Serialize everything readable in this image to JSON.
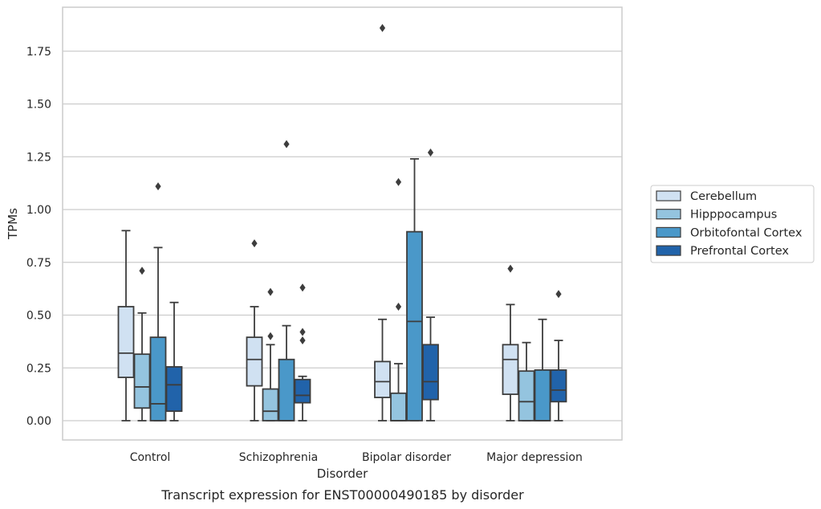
{
  "caption": "Transcript expression for ENST00000490185 by disorder",
  "chart_data": {
    "type": "box",
    "xlabel": "Disorder",
    "ylabel": "TPMs",
    "ylim": [
      -0.09,
      1.97
    ],
    "yticks": [
      "0.00",
      "0.25",
      "0.50",
      "0.75",
      "1.00",
      "1.25",
      "1.50",
      "1.75"
    ],
    "ytick_values": [
      0,
      0.25,
      0.5,
      0.75,
      1.0,
      1.25,
      1.5,
      1.75
    ],
    "grid": "horizontal",
    "legend_position": "right",
    "categories": [
      "Control",
      "Schizophrenia",
      "Bipolar disorder",
      "Major depression"
    ],
    "series": [
      {
        "name": "Cerebellum",
        "color": "#d0e1f2",
        "boxes": [
          {
            "whislo": 0.0,
            "q1": 0.205,
            "med": 0.32,
            "q3": 0.54,
            "whishi": 0.9,
            "fliers": []
          },
          {
            "whislo": 0.0,
            "q1": 0.165,
            "med": 0.29,
            "q3": 0.395,
            "whishi": 0.54,
            "fliers": [
              0.84
            ]
          },
          {
            "whislo": 0.0,
            "q1": 0.11,
            "med": 0.185,
            "q3": 0.28,
            "whishi": 0.48,
            "fliers": [
              1.86
            ]
          },
          {
            "whislo": 0.0,
            "q1": 0.125,
            "med": 0.29,
            "q3": 0.36,
            "whishi": 0.55,
            "fliers": [
              0.72
            ]
          }
        ]
      },
      {
        "name": "Hipppocampus",
        "color": "#94c4df",
        "boxes": [
          {
            "whislo": 0.0,
            "q1": 0.06,
            "med": 0.16,
            "q3": 0.315,
            "whishi": 0.51,
            "fliers": [
              0.71
            ]
          },
          {
            "whislo": 0.0,
            "q1": 0.0,
            "med": 0.045,
            "q3": 0.15,
            "whishi": 0.36,
            "fliers": [
              0.4,
              0.61
            ]
          },
          {
            "whislo": 0.0,
            "q1": 0.0,
            "med": 0.0,
            "q3": 0.13,
            "whishi": 0.27,
            "fliers": [
              0.54,
              1.13
            ]
          },
          {
            "whislo": 0.0,
            "q1": 0.0,
            "med": 0.09,
            "q3": 0.235,
            "whishi": 0.37,
            "fliers": []
          }
        ]
      },
      {
        "name": "Orbitofontal Cortex",
        "color": "#4a98c9",
        "boxes": [
          {
            "whislo": 0.0,
            "q1": 0.0,
            "med": 0.08,
            "q3": 0.395,
            "whishi": 0.82,
            "fliers": [
              1.11
            ]
          },
          {
            "whislo": 0.0,
            "q1": 0.0,
            "med": 0.0,
            "q3": 0.29,
            "whishi": 0.45,
            "fliers": [
              1.31
            ]
          },
          {
            "whislo": 0.0,
            "q1": 0.0,
            "med": 0.47,
            "q3": 0.895,
            "whishi": 1.24,
            "fliers": []
          },
          {
            "whislo": 0.0,
            "q1": 0.0,
            "med": 0.0,
            "q3": 0.24,
            "whishi": 0.48,
            "fliers": []
          }
        ]
      },
      {
        "name": "Prefrontal Cortex",
        "color": "#2163aa",
        "boxes": [
          {
            "whislo": 0.0,
            "q1": 0.045,
            "med": 0.17,
            "q3": 0.255,
            "whishi": 0.56,
            "fliers": []
          },
          {
            "whislo": 0.0,
            "q1": 0.085,
            "med": 0.12,
            "q3": 0.195,
            "whishi": 0.21,
            "fliers": [
              0.38,
              0.42,
              0.63
            ]
          },
          {
            "whislo": 0.0,
            "q1": 0.1,
            "med": 0.185,
            "q3": 0.36,
            "whishi": 0.49,
            "fliers": [
              1.27
            ]
          },
          {
            "whislo": 0.0,
            "q1": 0.09,
            "med": 0.145,
            "q3": 0.24,
            "whishi": 0.38,
            "fliers": [
              0.6
            ]
          }
        ]
      }
    ]
  }
}
